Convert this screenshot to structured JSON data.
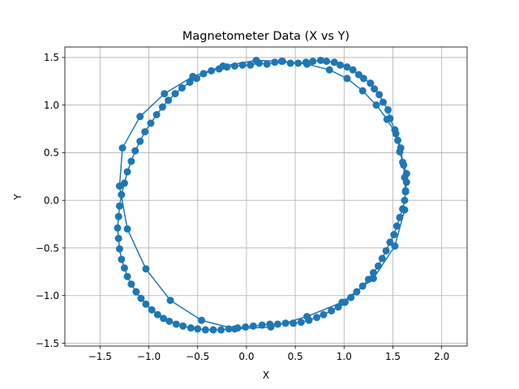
{
  "chart_data": {
    "type": "scatter",
    "title": "Magnetometer Data (X vs Y)",
    "xlabel": "X",
    "ylabel": "Y",
    "xlim": [
      -1.86,
      2.26
    ],
    "ylim": [
      -1.53,
      1.61
    ],
    "x_ticks": [
      -1.5,
      -1.0,
      -0.5,
      0.0,
      0.5,
      1.0,
      1.5,
      2.0
    ],
    "x_tick_labels": [
      "−1.5",
      "−1.0",
      "−0.5",
      "0.0",
      "0.5",
      "1.0",
      "1.5",
      "2.0"
    ],
    "y_ticks": [
      -1.5,
      -1.0,
      -0.5,
      0.0,
      0.5,
      1.0,
      1.5
    ],
    "y_tick_labels": [
      "−1.5",
      "−1.0",
      "−0.5",
      "0.0",
      "0.5",
      "1.0",
      "1.5"
    ],
    "grid": true,
    "connected": true,
    "series": [
      {
        "color": "#1f77b4",
        "marker": "circle",
        "x": [
          1.63,
          1.62,
          1.61,
          1.57,
          1.55,
          1.52,
          1.47,
          1.45,
          1.4,
          1.36,
          1.31,
          1.27,
          1.2,
          1.15,
          1.09,
          1.03,
          0.96,
          0.9,
          0.82,
          0.76,
          0.68,
          0.61,
          0.53,
          0.45,
          0.37,
          0.29,
          0.21,
          0.13,
          0.04,
          -0.04,
          -0.12,
          -0.2,
          -0.28,
          -0.36,
          -0.44,
          -0.51,
          -0.58,
          -0.66,
          -0.73,
          -0.8,
          -0.86,
          -0.92,
          -0.98,
          -1.04,
          -1.09,
          -1.14,
          -1.18,
          -1.22,
          -1.25,
          -1.28,
          -1.3,
          -1.31,
          -1.32,
          -1.31,
          -1.3,
          -1.28,
          -1.25,
          -1.22,
          -1.18,
          -1.13,
          -1.08,
          -1.03,
          -0.97,
          -0.91,
          -0.85,
          -0.79,
          -0.72,
          -0.65,
          -0.57,
          -0.5,
          -0.42,
          -0.34,
          -0.26,
          -0.18,
          -0.09,
          -0.01,
          0.07,
          0.16,
          0.24,
          0.32,
          0.4,
          0.48,
          0.56,
          0.64,
          0.72,
          0.79,
          0.87,
          0.94,
          1.01,
          1.07,
          1.13,
          1.19,
          1.25,
          1.3,
          1.35,
          1.39,
          1.43,
          1.47,
          1.51,
          1.54,
          1.57,
          1.6,
          1.62,
          1.63,
          1.64,
          1.64,
          1.6,
          1.58,
          1.53,
          1.44,
          1.33,
          1.19,
          1.03,
          0.85,
          0.62,
          0.36,
          0.1,
          -0.24,
          -0.55,
          -0.84,
          -1.09,
          -1.27,
          -1.3,
          -1.22,
          -1.03,
          -0.78,
          -0.46,
          -0.12,
          0.25,
          0.62,
          0.98,
          1.3,
          1.52,
          1.62
        ],
        "y": [
          0.09,
          0.24,
          0.37,
          0.51,
          0.63,
          0.74,
          0.86,
          0.95,
          1.03,
          1.11,
          1.17,
          1.23,
          1.28,
          1.32,
          1.37,
          1.4,
          1.42,
          1.45,
          1.46,
          1.47,
          1.46,
          1.45,
          1.44,
          1.44,
          1.46,
          1.45,
          1.43,
          1.44,
          1.42,
          1.42,
          1.41,
          1.4,
          1.38,
          1.36,
          1.33,
          1.28,
          1.24,
          1.18,
          1.12,
          1.05,
          0.98,
          0.9,
          0.81,
          0.72,
          0.62,
          0.52,
          0.41,
          0.3,
          0.18,
          0.06,
          -0.06,
          -0.17,
          -0.29,
          -0.4,
          -0.51,
          -0.62,
          -0.71,
          -0.8,
          -0.88,
          -0.96,
          -1.03,
          -1.09,
          -1.15,
          -1.2,
          -1.24,
          -1.27,
          -1.3,
          -1.32,
          -1.34,
          -1.35,
          -1.36,
          -1.36,
          -1.36,
          -1.35,
          -1.34,
          -1.33,
          -1.32,
          -1.31,
          -1.3,
          -1.3,
          -1.29,
          -1.29,
          -1.28,
          -1.26,
          -1.23,
          -1.2,
          -1.16,
          -1.12,
          -1.07,
          -1.02,
          -0.96,
          -0.9,
          -0.83,
          -0.76,
          -0.69,
          -0.61,
          -0.53,
          -0.44,
          -0.36,
          -0.27,
          -0.18,
          -0.09,
          0.0,
          0.1,
          0.19,
          0.28,
          0.4,
          0.55,
          0.7,
          0.85,
          1.0,
          1.15,
          1.28,
          1.37,
          1.43,
          1.46,
          1.47,
          1.41,
          1.3,
          1.12,
          0.88,
          0.55,
          0.15,
          -0.3,
          -0.72,
          -1.05,
          -1.26,
          -1.35,
          -1.33,
          -1.22,
          -1.07,
          -0.82,
          -0.48,
          -0.1
        ]
      }
    ]
  }
}
